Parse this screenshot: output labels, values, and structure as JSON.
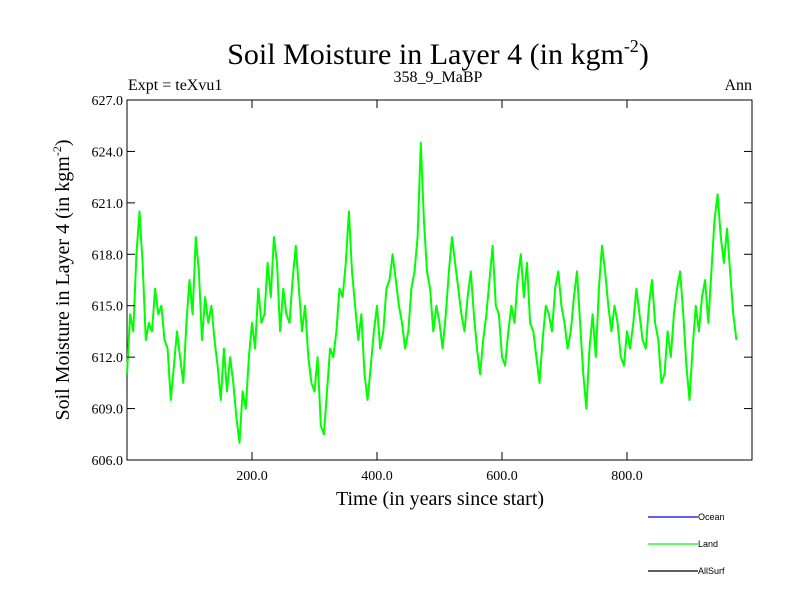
{
  "chart_data": {
    "type": "line",
    "title": "Soil Moisture in Layer 4 (in kgm",
    "title_sup": "-2",
    "title_close": ")",
    "subtitle_left": "Expt = teXvu1",
    "subtitle_center": "358_9_MaBP",
    "subtitle_right": "Ann",
    "xlabel": "Time (in years since start)",
    "ylabel": "Soil Moisture in Layer 4 (in kgm",
    "ylabel_sup": "-2",
    "ylabel_close": ")",
    "xlim": [
      0,
      1000
    ],
    "ylim": [
      606.0,
      627.0
    ],
    "xticks": [
      200,
      400,
      600,
      800
    ],
    "xtick_labels": [
      "200.0",
      "400.0",
      "600.0",
      "800.0"
    ],
    "yticks": [
      606,
      609,
      612,
      615,
      618,
      621,
      624,
      627
    ],
    "ytick_labels": [
      "606.0",
      "609.0",
      "612.0",
      "615.0",
      "618.0",
      "621.0",
      "624.0",
      "627.0"
    ],
    "legend_position": "bottom-right",
    "legend": [
      {
        "name": "Ocean",
        "color": "#0000ff"
      },
      {
        "name": "Land",
        "color": "#00ff00"
      },
      {
        "name": "AllSurf",
        "color": "#000000"
      }
    ],
    "series": [
      {
        "name": "Land",
        "color": "#00ff00",
        "x_start": 0,
        "x_step": 5,
        "values": [
          611.0,
          614.5,
          613.5,
          618.0,
          620.5,
          617.5,
          613.0,
          614.0,
          613.5,
          616.0,
          614.5,
          615.0,
          613.0,
          612.5,
          609.5,
          611.5,
          613.5,
          612.0,
          610.5,
          614.0,
          616.5,
          614.5,
          619.0,
          617.0,
          613.0,
          615.5,
          614.0,
          615.0,
          613.0,
          611.5,
          609.5,
          612.5,
          610.0,
          612.0,
          610.5,
          608.5,
          607.0,
          610.0,
          609.0,
          612.0,
          614.0,
          612.5,
          616.0,
          614.0,
          614.5,
          617.5,
          615.5,
          619.0,
          617.5,
          613.5,
          616.0,
          614.5,
          614.0,
          616.5,
          618.5,
          616.0,
          613.5,
          615.0,
          612.0,
          610.5,
          610.0,
          612.0,
          608.0,
          607.5,
          610.0,
          612.5,
          612.0,
          613.5,
          616.0,
          615.5,
          617.5,
          620.5,
          617.0,
          615.0,
          613.0,
          614.5,
          611.0,
          609.5,
          611.5,
          613.5,
          615.0,
          612.5,
          613.5,
          616.0,
          616.5,
          618.0,
          616.5,
          615.0,
          614.0,
          612.5,
          613.5,
          616.0,
          617.0,
          619.0,
          624.5,
          620.0,
          617.0,
          616.0,
          613.5,
          615.0,
          614.0,
          612.5,
          614.5,
          617.0,
          619.0,
          617.5,
          616.0,
          614.5,
          613.5,
          615.5,
          617.0,
          614.5,
          612.5,
          611.0,
          613.0,
          614.5,
          616.5,
          618.5,
          615.0,
          614.5,
          612.0,
          611.5,
          613.5,
          615.0,
          614.0,
          616.5,
          618.0,
          615.5,
          617.5,
          614.0,
          613.5,
          612.0,
          610.5,
          613.0,
          615.0,
          614.5,
          613.5,
          616.0,
          617.0,
          615.0,
          614.0,
          612.5,
          613.5,
          615.5,
          617.0,
          614.0,
          611.0,
          609.0,
          612.5,
          614.5,
          612.0,
          616.0,
          618.5,
          617.0,
          615.0,
          613.5,
          615.0,
          614.0,
          612.0,
          611.5,
          613.5,
          612.5,
          614.0,
          616.0,
          614.5,
          613.0,
          612.5,
          615.0,
          616.5,
          614.0,
          613.0,
          610.5,
          611.0,
          613.5,
          612.0,
          614.5,
          616.0,
          617.0,
          614.5,
          611.5,
          609.5,
          612.5,
          615.0,
          613.5,
          615.5,
          616.5,
          614.0,
          617.0,
          620.0,
          621.5,
          619.0,
          617.5,
          619.5,
          617.0,
          614.5,
          613.0
        ]
      },
      {
        "name": "Ocean",
        "color": "#0000ff",
        "values": []
      },
      {
        "name": "AllSurf",
        "color": "#000000",
        "values": []
      }
    ]
  }
}
